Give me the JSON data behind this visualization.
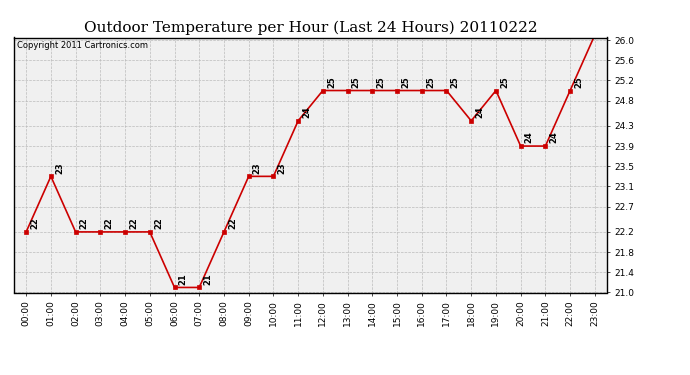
{
  "title": "Outdoor Temperature per Hour (Last 24 Hours) 20110222",
  "copyright": "Copyright 2011 Cartronics.com",
  "hours": [
    "00:00",
    "01:00",
    "02:00",
    "03:00",
    "04:00",
    "05:00",
    "06:00",
    "07:00",
    "08:00",
    "09:00",
    "10:00",
    "11:00",
    "12:00",
    "13:00",
    "14:00",
    "15:00",
    "16:00",
    "17:00",
    "18:00",
    "19:00",
    "20:00",
    "21:00",
    "22:00",
    "23:00"
  ],
  "values": [
    22.2,
    23.3,
    22.2,
    22.2,
    22.2,
    22.2,
    21.1,
    21.1,
    22.2,
    23.3,
    23.3,
    24.4,
    25.0,
    25.0,
    25.0,
    25.0,
    25.0,
    25.0,
    24.4,
    25.0,
    23.9,
    23.9,
    25.0,
    26.1
  ],
  "ylim_min": 21.0,
  "ylim_max": 26.05,
  "yticks": [
    21.0,
    21.4,
    21.8,
    22.2,
    22.7,
    23.1,
    23.5,
    23.9,
    24.3,
    24.8,
    25.2,
    25.6,
    26.0
  ],
  "line_color": "#cc0000",
  "marker_color": "#cc0000",
  "bg_color": "white",
  "plot_bg_color": "#f0f0f0",
  "grid_color": "#bbbbbb",
  "title_fontsize": 11,
  "tick_fontsize": 6.5,
  "annotation_fontsize": 6,
  "copyright_fontsize": 6
}
